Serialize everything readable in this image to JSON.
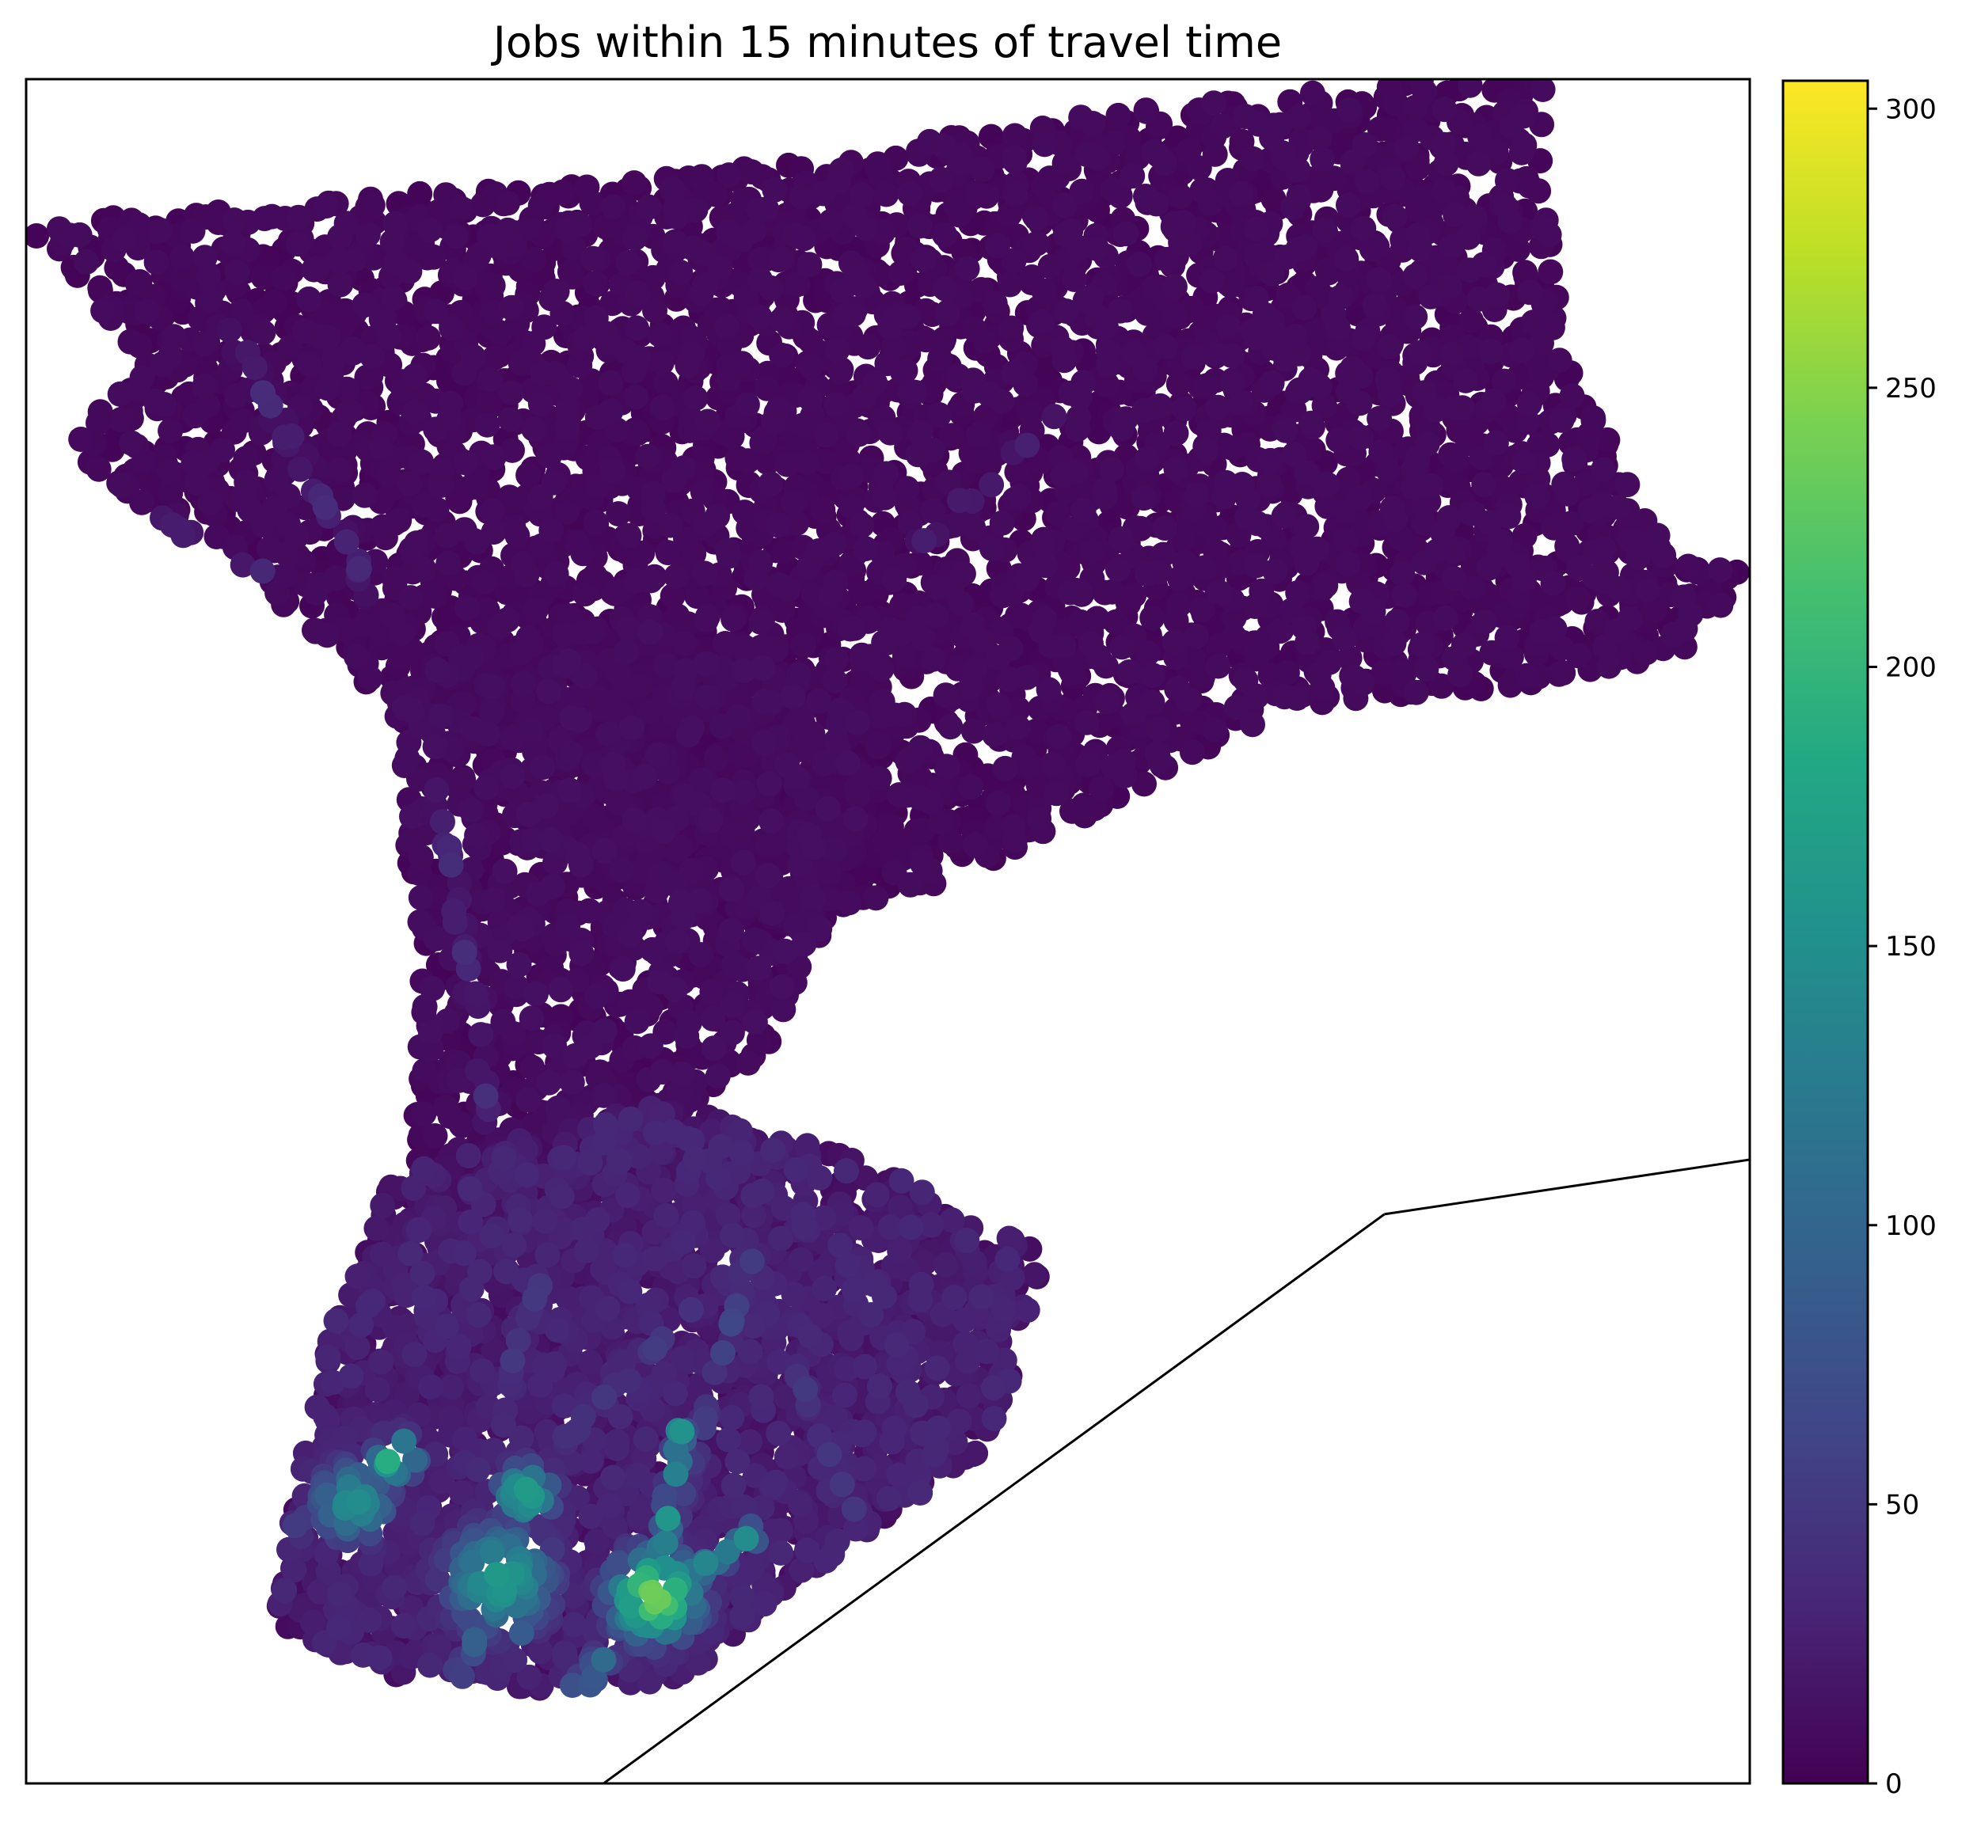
{
  "chart_data": {
    "type": "scatter",
    "title": "Jobs within 15 minutes of travel time",
    "xlabel": "",
    "ylabel": "",
    "x_ticks_visible": false,
    "y_ticks_visible": false,
    "colormap": "viridis",
    "colorbar": {
      "position": "right",
      "vmin": 0,
      "vmax": 305,
      "ticks": [
        0,
        50,
        100,
        150,
        200,
        250,
        300
      ],
      "tick_labels": [
        "0",
        "50",
        "100",
        "150",
        "200",
        "250",
        "300"
      ]
    },
    "xlim": [
      0,
      100
    ],
    "ylim": [
      0,
      100
    ],
    "boundary_line": [
      [
        78.8,
        33.4
      ],
      [
        100,
        36.6
      ]
    ],
    "boundary_line_2": [
      [
        78.8,
        33.4
      ],
      [
        33.5,
        0
      ]
    ],
    "regions": [
      {
        "name": "north",
        "polygon": [
          [
            0,
            91.5
          ],
          [
            18,
            93
          ],
          [
            40,
            94.5
          ],
          [
            62,
            98
          ],
          [
            80,
            100
          ],
          [
            88,
            100
          ],
          [
            89,
            85
          ],
          [
            94,
            74
          ],
          [
            100,
            71
          ],
          [
            96,
            66
          ],
          [
            87,
            64.5
          ],
          [
            73,
            63
          ],
          [
            64,
            58
          ],
          [
            54,
            53
          ],
          [
            43,
            50
          ],
          [
            34,
            54
          ],
          [
            26,
            61
          ],
          [
            20,
            63
          ],
          [
            17.5,
            67
          ],
          [
            12,
            71.5
          ],
          [
            5,
            75.5
          ],
          [
            2.5,
            79
          ],
          [
            7,
            83
          ]
        ],
        "density": 1.0,
        "base_value": 6
      },
      {
        "name": "neck",
        "polygon": [
          [
            21,
            66
          ],
          [
            35,
            68
          ],
          [
            50,
            64
          ],
          [
            47,
            52
          ],
          [
            43,
            43
          ],
          [
            36,
            38
          ],
          [
            28,
            33
          ],
          [
            22,
            32
          ],
          [
            23,
            45
          ],
          [
            22,
            56
          ]
        ],
        "density": 1.0,
        "base_value": 8
      },
      {
        "name": "south",
        "polygon": [
          [
            21.5,
            36
          ],
          [
            37,
            40
          ],
          [
            50,
            36
          ],
          [
            59,
            31
          ],
          [
            58,
            27
          ],
          [
            56,
            20
          ],
          [
            48,
            14
          ],
          [
            42,
            9.5
          ],
          [
            38,
            6
          ],
          [
            30,
            5.5
          ],
          [
            20,
            6.5
          ],
          [
            14.5,
            9.5
          ],
          [
            15.5,
            16
          ],
          [
            17.5,
            26
          ]
        ],
        "density": 1.2,
        "base_value": 22
      }
    ],
    "hotspots": [
      {
        "x": 36.5,
        "y": 11.0,
        "value": 240,
        "spread": 1.8
      },
      {
        "x": 21.5,
        "y": 19.2,
        "value": 250,
        "spread": 0.8
      },
      {
        "x": 27.5,
        "y": 12.0,
        "value": 165,
        "spread": 2.2
      },
      {
        "x": 19.0,
        "y": 16.5,
        "value": 150,
        "spread": 1.6
      },
      {
        "x": 29.0,
        "y": 17.0,
        "value": 170,
        "spread": 1.2
      }
    ],
    "corridors": [
      {
        "from": [
          36.5,
          11.0
        ],
        "to": [
          38.0,
          21.0
        ],
        "value": 175,
        "width": 0.6
      },
      {
        "from": [
          36.5,
          11.0
        ],
        "to": [
          42.0,
          14.5
        ],
        "value": 140,
        "width": 1.2
      },
      {
        "from": [
          36.5,
          11.0
        ],
        "to": [
          32.0,
          5.5
        ],
        "value": 120,
        "width": 1.0
      },
      {
        "from": [
          25.0,
          12.5
        ],
        "to": [
          29.0,
          9.0
        ],
        "value": 110,
        "width": 1.2
      },
      {
        "from": [
          21.5,
          19.0
        ],
        "to": [
          16.0,
          15.0
        ],
        "value": 120,
        "width": 0.8
      },
      {
        "from": [
          27.5,
          12.0
        ],
        "to": [
          25.0,
          6.0
        ],
        "value": 100,
        "width": 0.8
      },
      {
        "from": [
          42.0,
          31.0
        ],
        "to": [
          36.5,
          11.0
        ],
        "value": 60,
        "width": 0.7
      },
      {
        "from": [
          42.0,
          31.0
        ],
        "to": [
          27.0,
          16.0
        ],
        "value": 55,
        "width": 0.7
      },
      {
        "from": [
          42.0,
          31.0
        ],
        "to": [
          48.0,
          16.0
        ],
        "value": 50,
        "width": 0.7
      },
      {
        "from": [
          12.0,
          85.0
        ],
        "to": [
          20.0,
          70.0
        ],
        "value": 40,
        "width": 0.6
      },
      {
        "from": [
          14.0,
          71.0
        ],
        "to": [
          5.0,
          75.5
        ],
        "value": 35,
        "width": 0.6
      },
      {
        "from": [
          24.0,
          58.0
        ],
        "to": [
          27.0,
          38.0
        ],
        "value": 40,
        "width": 0.6
      },
      {
        "from": [
          52.0,
          73.0
        ],
        "to": [
          60.0,
          80.0
        ],
        "value": 40,
        "width": 0.6
      },
      {
        "from": [
          30.0,
          30.0
        ],
        "to": [
          26.0,
          18.0
        ],
        "value": 55,
        "width": 0.7
      }
    ]
  }
}
